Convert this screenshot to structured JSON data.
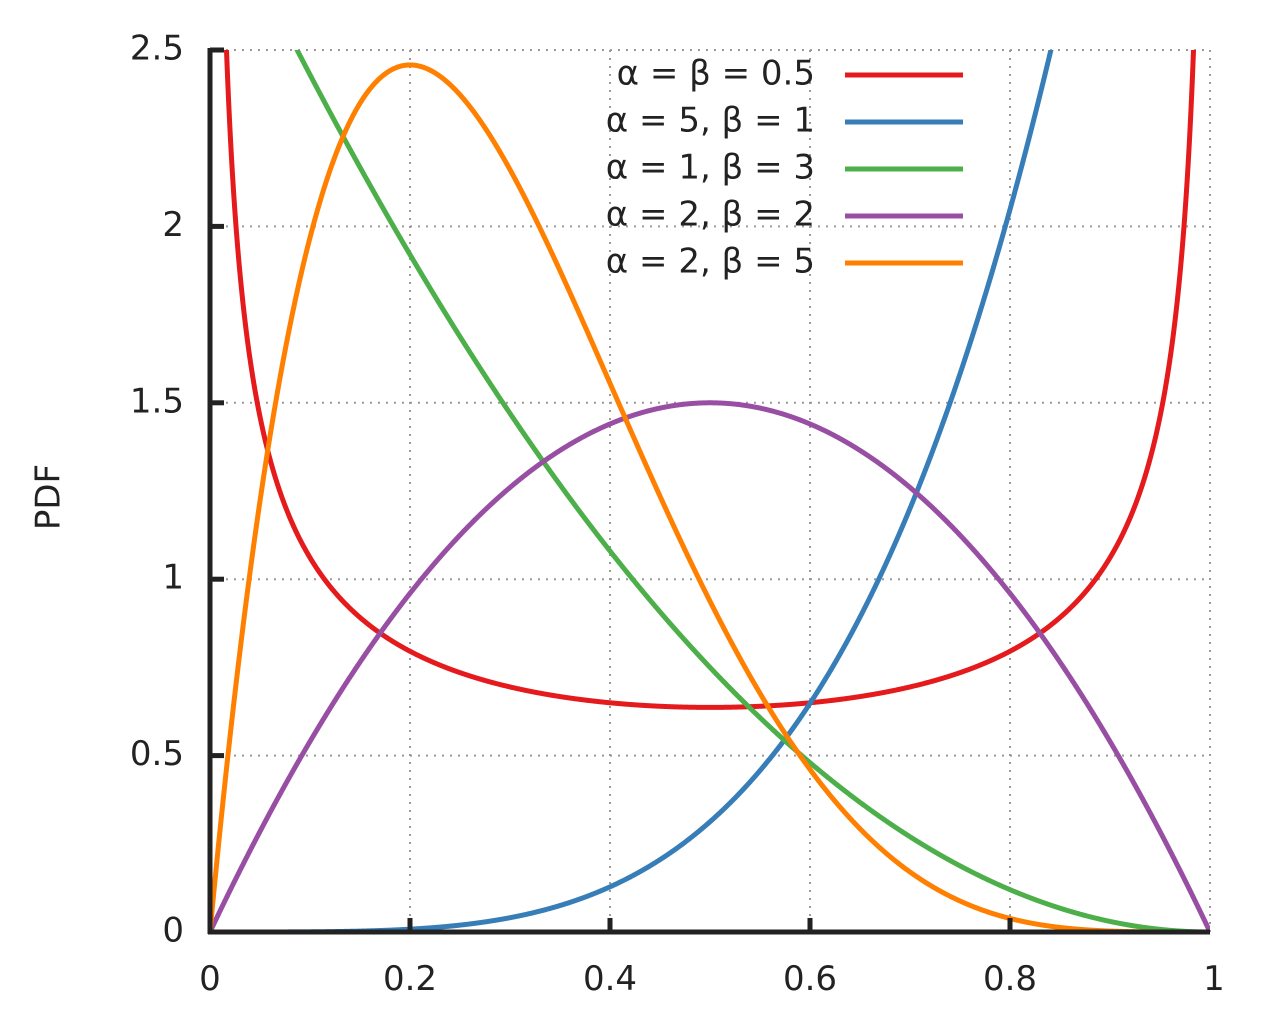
{
  "chart_data": {
    "type": "line",
    "title": "",
    "xlabel": "",
    "ylabel": "PDF",
    "xlim": [
      0,
      1
    ],
    "ylim": [
      0,
      2.5
    ],
    "grid": true,
    "legend_position": "top-right",
    "x_ticks": [
      "0",
      "0.2",
      "0.4",
      "0.6",
      "0.8",
      "1"
    ],
    "y_ticks": [
      "0",
      "0.5",
      "1",
      "1.5",
      "2",
      "2.5"
    ],
    "series": [
      {
        "name": "α = β = 0.5",
        "alpha": 0.5,
        "beta": 0.5,
        "color": "#e41a1c"
      },
      {
        "name": "α = 5, β = 1",
        "alpha": 5,
        "beta": 1,
        "color": "#377eb8"
      },
      {
        "name": "α = 1, β = 3",
        "alpha": 1,
        "beta": 3,
        "color": "#4daf4a"
      },
      {
        "name": "α = 2, β = 2",
        "alpha": 2,
        "beta": 2,
        "color": "#984ea3"
      },
      {
        "name": "α = 2, β = 5",
        "alpha": 2,
        "beta": 5,
        "color": "#ff7f00"
      }
    ]
  }
}
